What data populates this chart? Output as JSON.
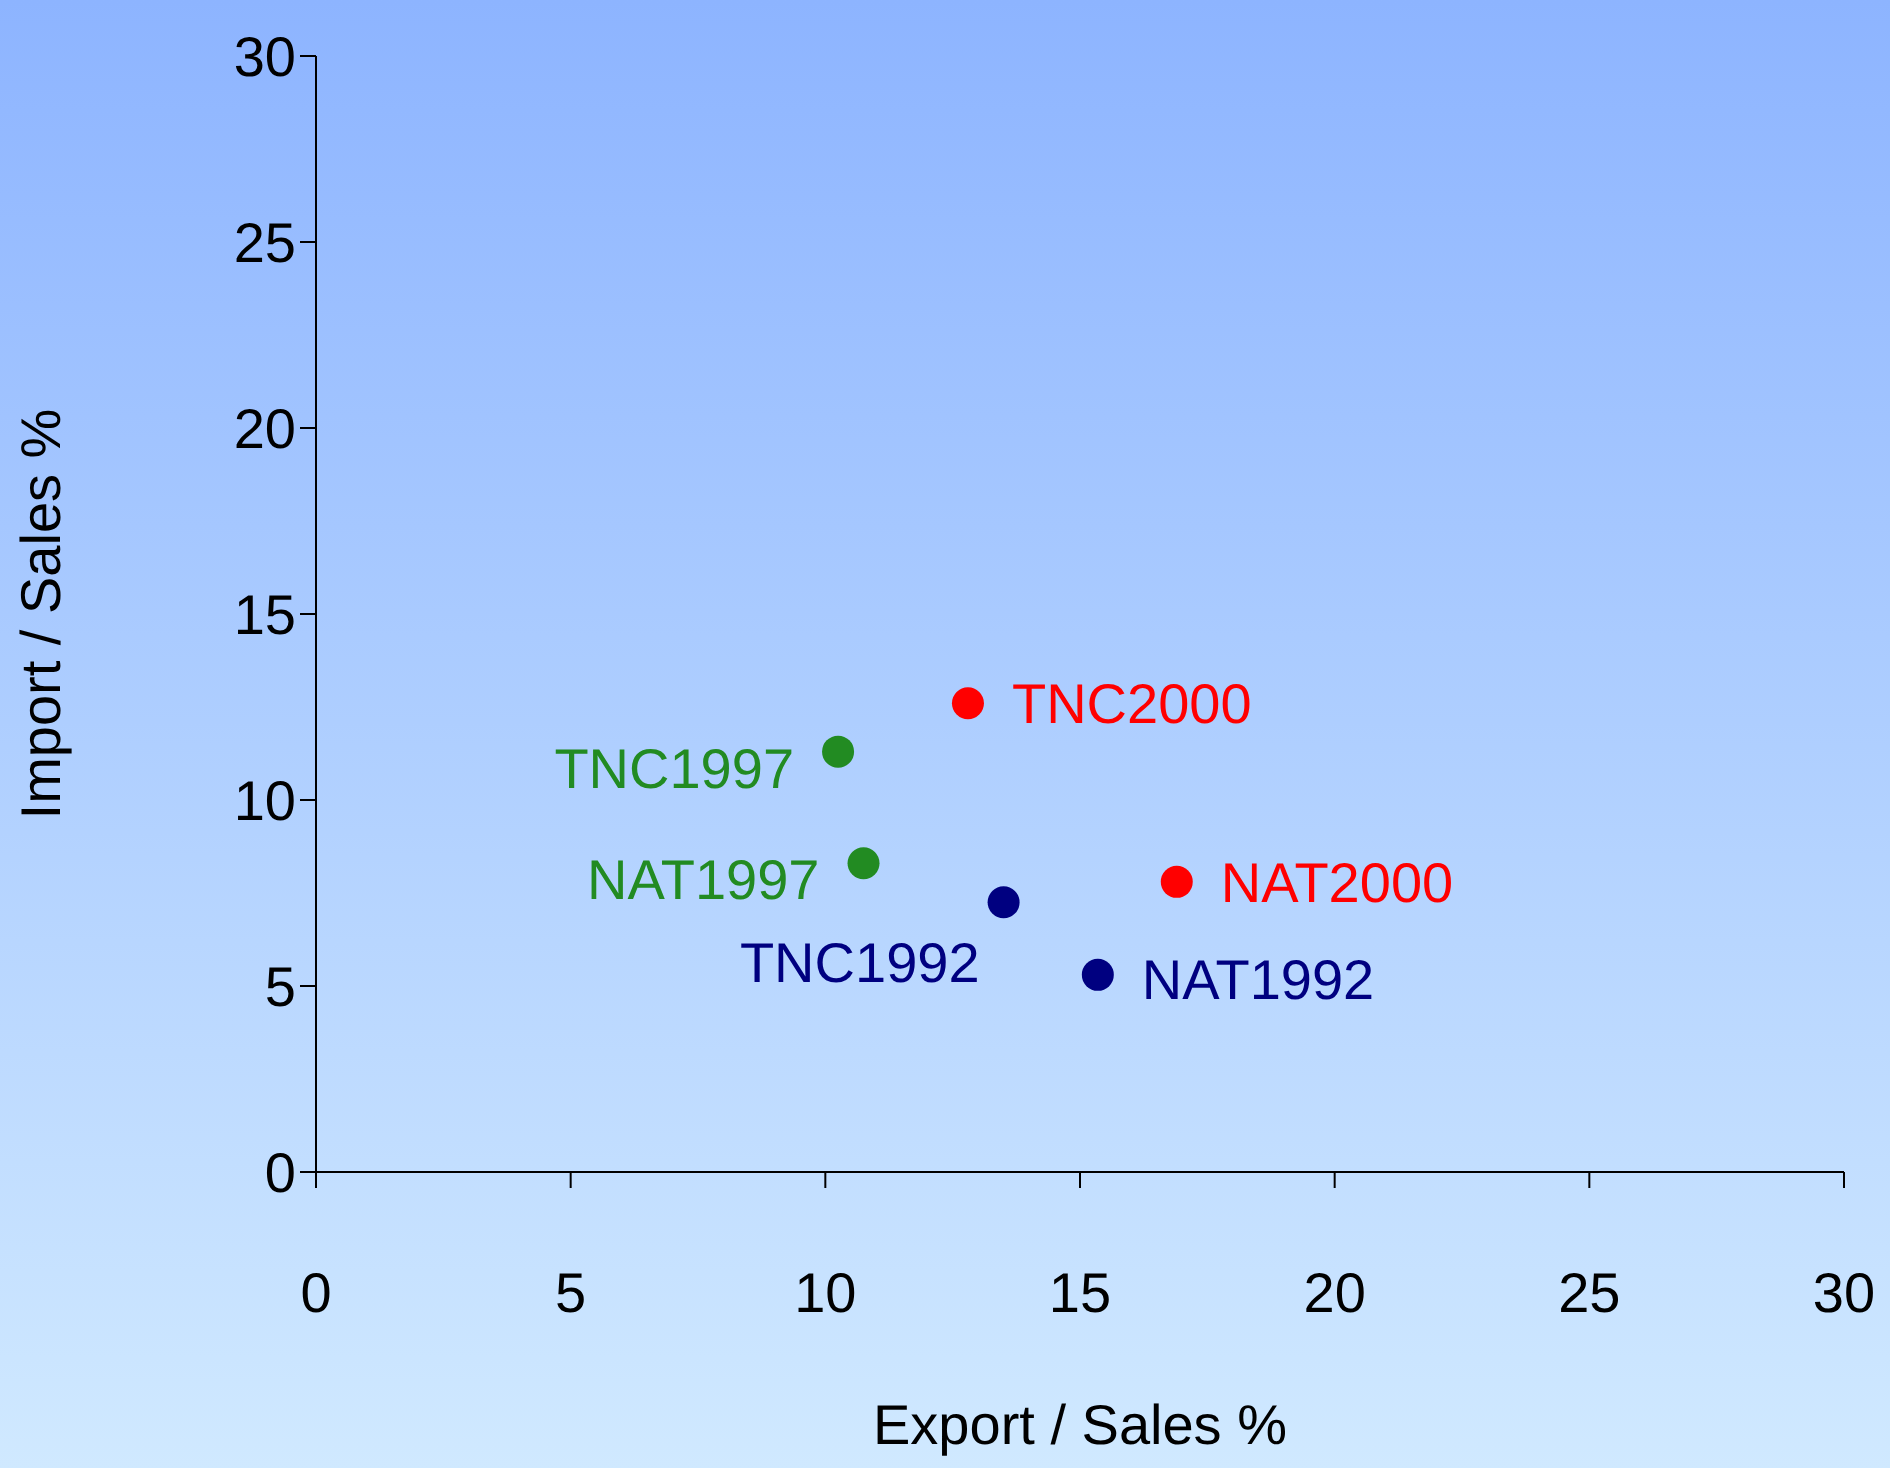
{
  "chart_data": {
    "type": "scatter",
    "xlabel": "Export / Sales %",
    "ylabel": "Import / Sales %",
    "xlim": [
      0,
      30
    ],
    "xticks": [
      0,
      5,
      10,
      15,
      20,
      25,
      30
    ],
    "ylim": [
      0,
      30
    ],
    "yticks": [
      0,
      5,
      10,
      15,
      20,
      25,
      30
    ],
    "grid": false,
    "legend": false,
    "marker": "circle",
    "series": [
      {
        "name": "TNC2000",
        "color": "#ff0000",
        "x": [
          12.8
        ],
        "values": [
          12.6
        ]
      },
      {
        "name": "NAT2000",
        "color": "#ff0000",
        "x": [
          16.9
        ],
        "values": [
          7.8
        ]
      },
      {
        "name": "TNC1997",
        "color": "#228b22",
        "x": [
          10.25
        ],
        "values": [
          11.3
        ]
      },
      {
        "name": "NAT1997",
        "color": "#228b22",
        "x": [
          10.75
        ],
        "values": [
          8.3
        ]
      },
      {
        "name": "TNC1992",
        "color": "#000080",
        "x": [
          13.5
        ],
        "values": [
          7.25
        ]
      },
      {
        "name": "NAT1992",
        "color": "#000080",
        "x": [
          15.35
        ],
        "values": [
          5.3
        ]
      }
    ]
  }
}
